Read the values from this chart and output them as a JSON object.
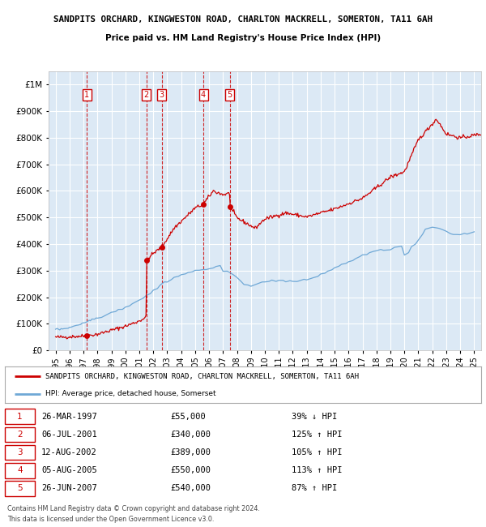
{
  "title1": "SANDPITS ORCHARD, KINGWESTON ROAD, CHARLTON MACKRELL, SOMERTON, TA11 6AH",
  "title2": "Price paid vs. HM Land Registry's House Price Index (HPI)",
  "legend_line1": "SANDPITS ORCHARD, KINGWESTON ROAD, CHARLTON MACKRELL, SOMERTON, TA11 6AH",
  "legend_line2": "HPI: Average price, detached house, Somerset",
  "footer1": "Contains HM Land Registry data © Crown copyright and database right 2024.",
  "footer2": "This data is licensed under the Open Government Licence v3.0.",
  "transactions": [
    {
      "num": 1,
      "date": "26-MAR-1997",
      "year": 1997.23,
      "price": 55000,
      "hpi_pct": "39% ↓ HPI"
    },
    {
      "num": 2,
      "date": "06-JUL-2001",
      "year": 2001.51,
      "price": 340000,
      "hpi_pct": "125% ↑ HPI"
    },
    {
      "num": 3,
      "date": "12-AUG-2002",
      "year": 2002.61,
      "price": 389000,
      "hpi_pct": "105% ↑ HPI"
    },
    {
      "num": 4,
      "date": "05-AUG-2005",
      "year": 2005.59,
      "price": 550000,
      "hpi_pct": "113% ↑ HPI"
    },
    {
      "num": 5,
      "date": "26-JUN-2007",
      "year": 2007.48,
      "price": 540000,
      "hpi_pct": "87% ↑ HPI"
    }
  ],
  "plot_bg": "#dce9f5",
  "grid_color": "#ffffff",
  "hpi_line_color": "#6fa8d6",
  "price_line_color": "#cc0000",
  "dot_color": "#cc0000",
  "vline_color": "#cc0000",
  "box_color": "#cc0000",
  "ylim": [
    0,
    1050000
  ],
  "xlim_start": 1994.5,
  "xlim_end": 2025.5,
  "hpi_data": {
    "years": [
      1995.0,
      1995.1,
      1995.3,
      1995.4,
      1995.5,
      1995.6,
      1995.8,
      1995.9,
      1996.0,
      1996.1,
      1996.3,
      1996.4,
      1996.5,
      1996.6,
      1996.8,
      1996.9,
      1997.0,
      1997.1,
      1997.3,
      1997.4,
      1997.5,
      1997.6,
      1997.8,
      1997.9,
      1998.0,
      1998.3,
      1998.5,
      1998.8,
      1999.0,
      1999.3,
      1999.5,
      1999.8,
      2000.0,
      2000.3,
      2000.5,
      2000.8,
      2001.0,
      2001.3,
      2001.5,
      2001.8,
      2002.0,
      2002.3,
      2002.5,
      2002.8,
      2003.0,
      2003.3,
      2003.5,
      2003.8,
      2004.0,
      2004.3,
      2004.5,
      2004.8,
      2005.0,
      2005.3,
      2005.5,
      2005.8,
      2006.0,
      2006.3,
      2006.5,
      2006.8,
      2007.0,
      2007.3,
      2007.5,
      2007.8,
      2008.0,
      2008.3,
      2008.5,
      2008.8,
      2009.0,
      2009.3,
      2009.5,
      2009.8,
      2010.0,
      2010.3,
      2010.5,
      2010.8,
      2011.0,
      2011.3,
      2011.5,
      2011.8,
      2012.0,
      2012.3,
      2012.5,
      2012.8,
      2013.0,
      2013.3,
      2013.5,
      2013.8,
      2014.0,
      2014.3,
      2014.5,
      2014.8,
      2015.0,
      2015.3,
      2015.5,
      2015.8,
      2016.0,
      2016.3,
      2016.5,
      2016.8,
      2017.0,
      2017.3,
      2017.5,
      2017.8,
      2018.0,
      2018.3,
      2018.5,
      2018.8,
      2019.0,
      2019.3,
      2019.5,
      2019.8,
      2020.0,
      2020.3,
      2020.5,
      2020.8,
      2021.0,
      2021.3,
      2021.5,
      2021.8,
      2022.0,
      2022.3,
      2022.5,
      2022.8,
      2023.0,
      2023.3,
      2023.5,
      2023.8,
      2024.0,
      2024.3,
      2024.5,
      2025.0
    ],
    "values": [
      78000,
      79000,
      80000,
      81000,
      82000,
      83000,
      84000,
      85000,
      87000,
      89000,
      91000,
      93000,
      95000,
      97000,
      99000,
      101000,
      103000,
      106000,
      109000,
      112000,
      115000,
      117000,
      119000,
      121000,
      123000,
      128000,
      133000,
      138000,
      143000,
      148000,
      153000,
      158000,
      163000,
      170000,
      177000,
      184000,
      191000,
      198000,
      205000,
      215000,
      225000,
      235000,
      245000,
      255000,
      262000,
      268000,
      274000,
      279000,
      284000,
      289000,
      293000,
      296000,
      299000,
      301000,
      303000,
      305000,
      308000,
      311000,
      315000,
      320000,
      297000,
      294000,
      291000,
      283000,
      272000,
      260000,
      252000,
      248000,
      245000,
      248000,
      251000,
      254000,
      257000,
      260000,
      263000,
      264000,
      263000,
      262000,
      261000,
      260000,
      259000,
      260000,
      261000,
      263000,
      265000,
      270000,
      275000,
      280000,
      286000,
      292000,
      298000,
      304000,
      310000,
      316000,
      322000,
      328000,
      334000,
      340000,
      346000,
      352000,
      358000,
      362000,
      366000,
      370000,
      374000,
      376000,
      378000,
      380000,
      382000,
      385000,
      388000,
      392000,
      358000,
      370000,
      385000,
      400000,
      415000,
      435000,
      455000,
      460000,
      465000,
      460000,
      455000,
      450000,
      445000,
      440000,
      438000,
      436000,
      435000,
      438000,
      441000,
      443000
    ]
  }
}
